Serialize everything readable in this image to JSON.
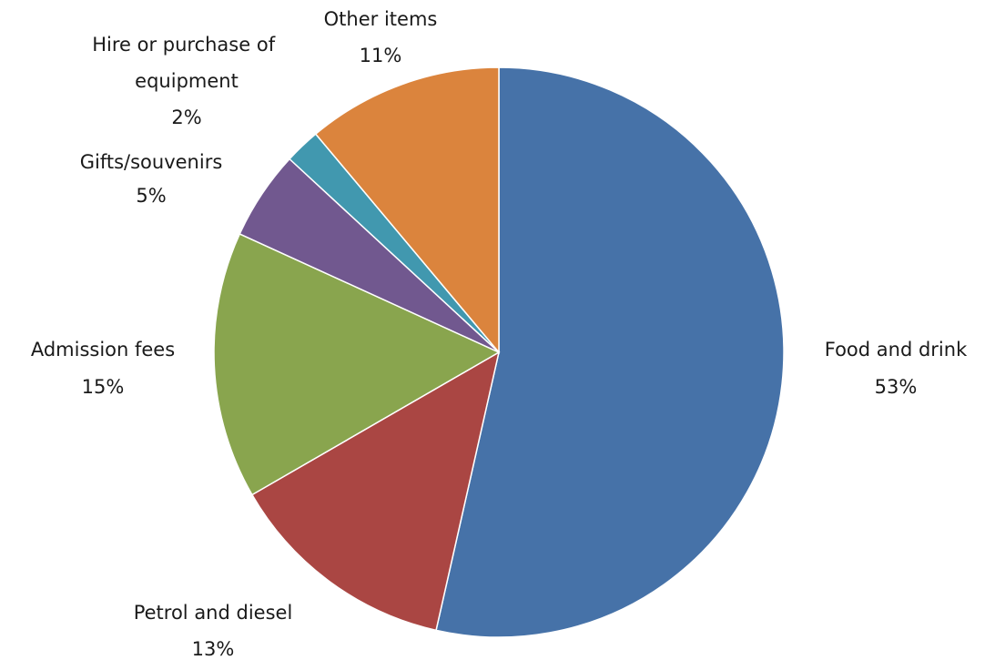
{
  "chart_data": {
    "type": "pie",
    "title": "",
    "start_angle_deg": 0,
    "direction": "clockwise",
    "slices": [
      {
        "label": "Food and drink",
        "value": 53,
        "value_label": "53%",
        "color": "#4672A8"
      },
      {
        "label": "Petrol and diesel",
        "value": 13,
        "value_label": "13%",
        "color": "#AA4643"
      },
      {
        "label": "Admission fees",
        "value": 15,
        "value_label": "15%",
        "color": "#89A54E"
      },
      {
        "label": "Gifts/souvenirs",
        "value": 5,
        "value_label": "5%",
        "color": "#71588F"
      },
      {
        "label": "Hire or purchase of equipment",
        "value": 2,
        "value_label": "2%",
        "color": "#4198AF"
      },
      {
        "label": "Other items",
        "value": 11,
        "value_label": "11%",
        "color": "#DB843D"
      }
    ]
  }
}
